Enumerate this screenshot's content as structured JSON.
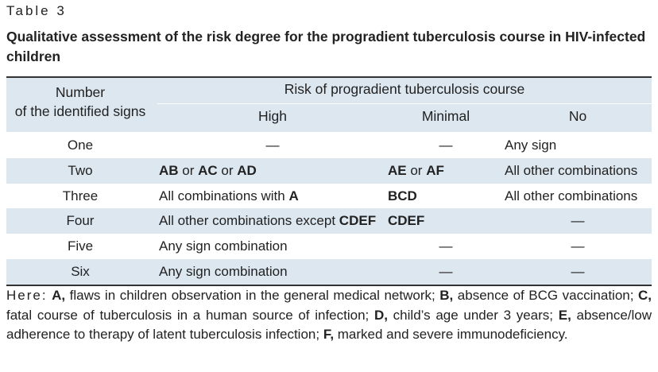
{
  "table_label": "Table 3",
  "caption": "Qualitative assessment of the risk degree for the progradient tuberculosis course in HIV-infected children",
  "header": {
    "number_col_line1": "Number",
    "number_col_line2": "of the identified signs",
    "risk_group": "Risk of progradient tuberculosis course",
    "high": "High",
    "minimal": "Minimal",
    "no": "No"
  },
  "rows": [
    {
      "number": "One",
      "high": "—",
      "minimal": "—",
      "no": "Any sign"
    },
    {
      "number": "Two",
      "high_parts": [
        "AB",
        " or ",
        "AC",
        " or ",
        "AD"
      ],
      "minimal_parts": [
        "AE",
        " or ",
        "AF"
      ],
      "no": "All other combinations"
    },
    {
      "number": "Three",
      "high_parts": [
        "All combinations with ",
        "A"
      ],
      "minimal": "BCD",
      "no": "All other combinations"
    },
    {
      "number": "Four",
      "high_parts": [
        "All other combinations except ",
        "CDEF"
      ],
      "minimal": "CDEF",
      "no": "—"
    },
    {
      "number": "Five",
      "high": "Any sign combination",
      "minimal": "—",
      "no": "—"
    },
    {
      "number": "Six",
      "high": "Any sign combination",
      "minimal": "—",
      "no": "—"
    }
  ],
  "note": {
    "lead": "Here:",
    "A_key": "A,",
    "A_text": " flaws in children observation in the general medical network; ",
    "B_key": "B,",
    "B_text": " absence of BCG vaccination; ",
    "C_key": "C,",
    "C_text": " fatal course of tuberculosis in a human source of infection; ",
    "D_key": "D,",
    "D_text": " child’s age under 3 years; ",
    "E_key": "E,",
    "E_text": " absence/low adherence to therapy of latent tuberculosis infection; ",
    "F_key": "F,",
    "F_text": " marked and severe immunodeficiency."
  }
}
